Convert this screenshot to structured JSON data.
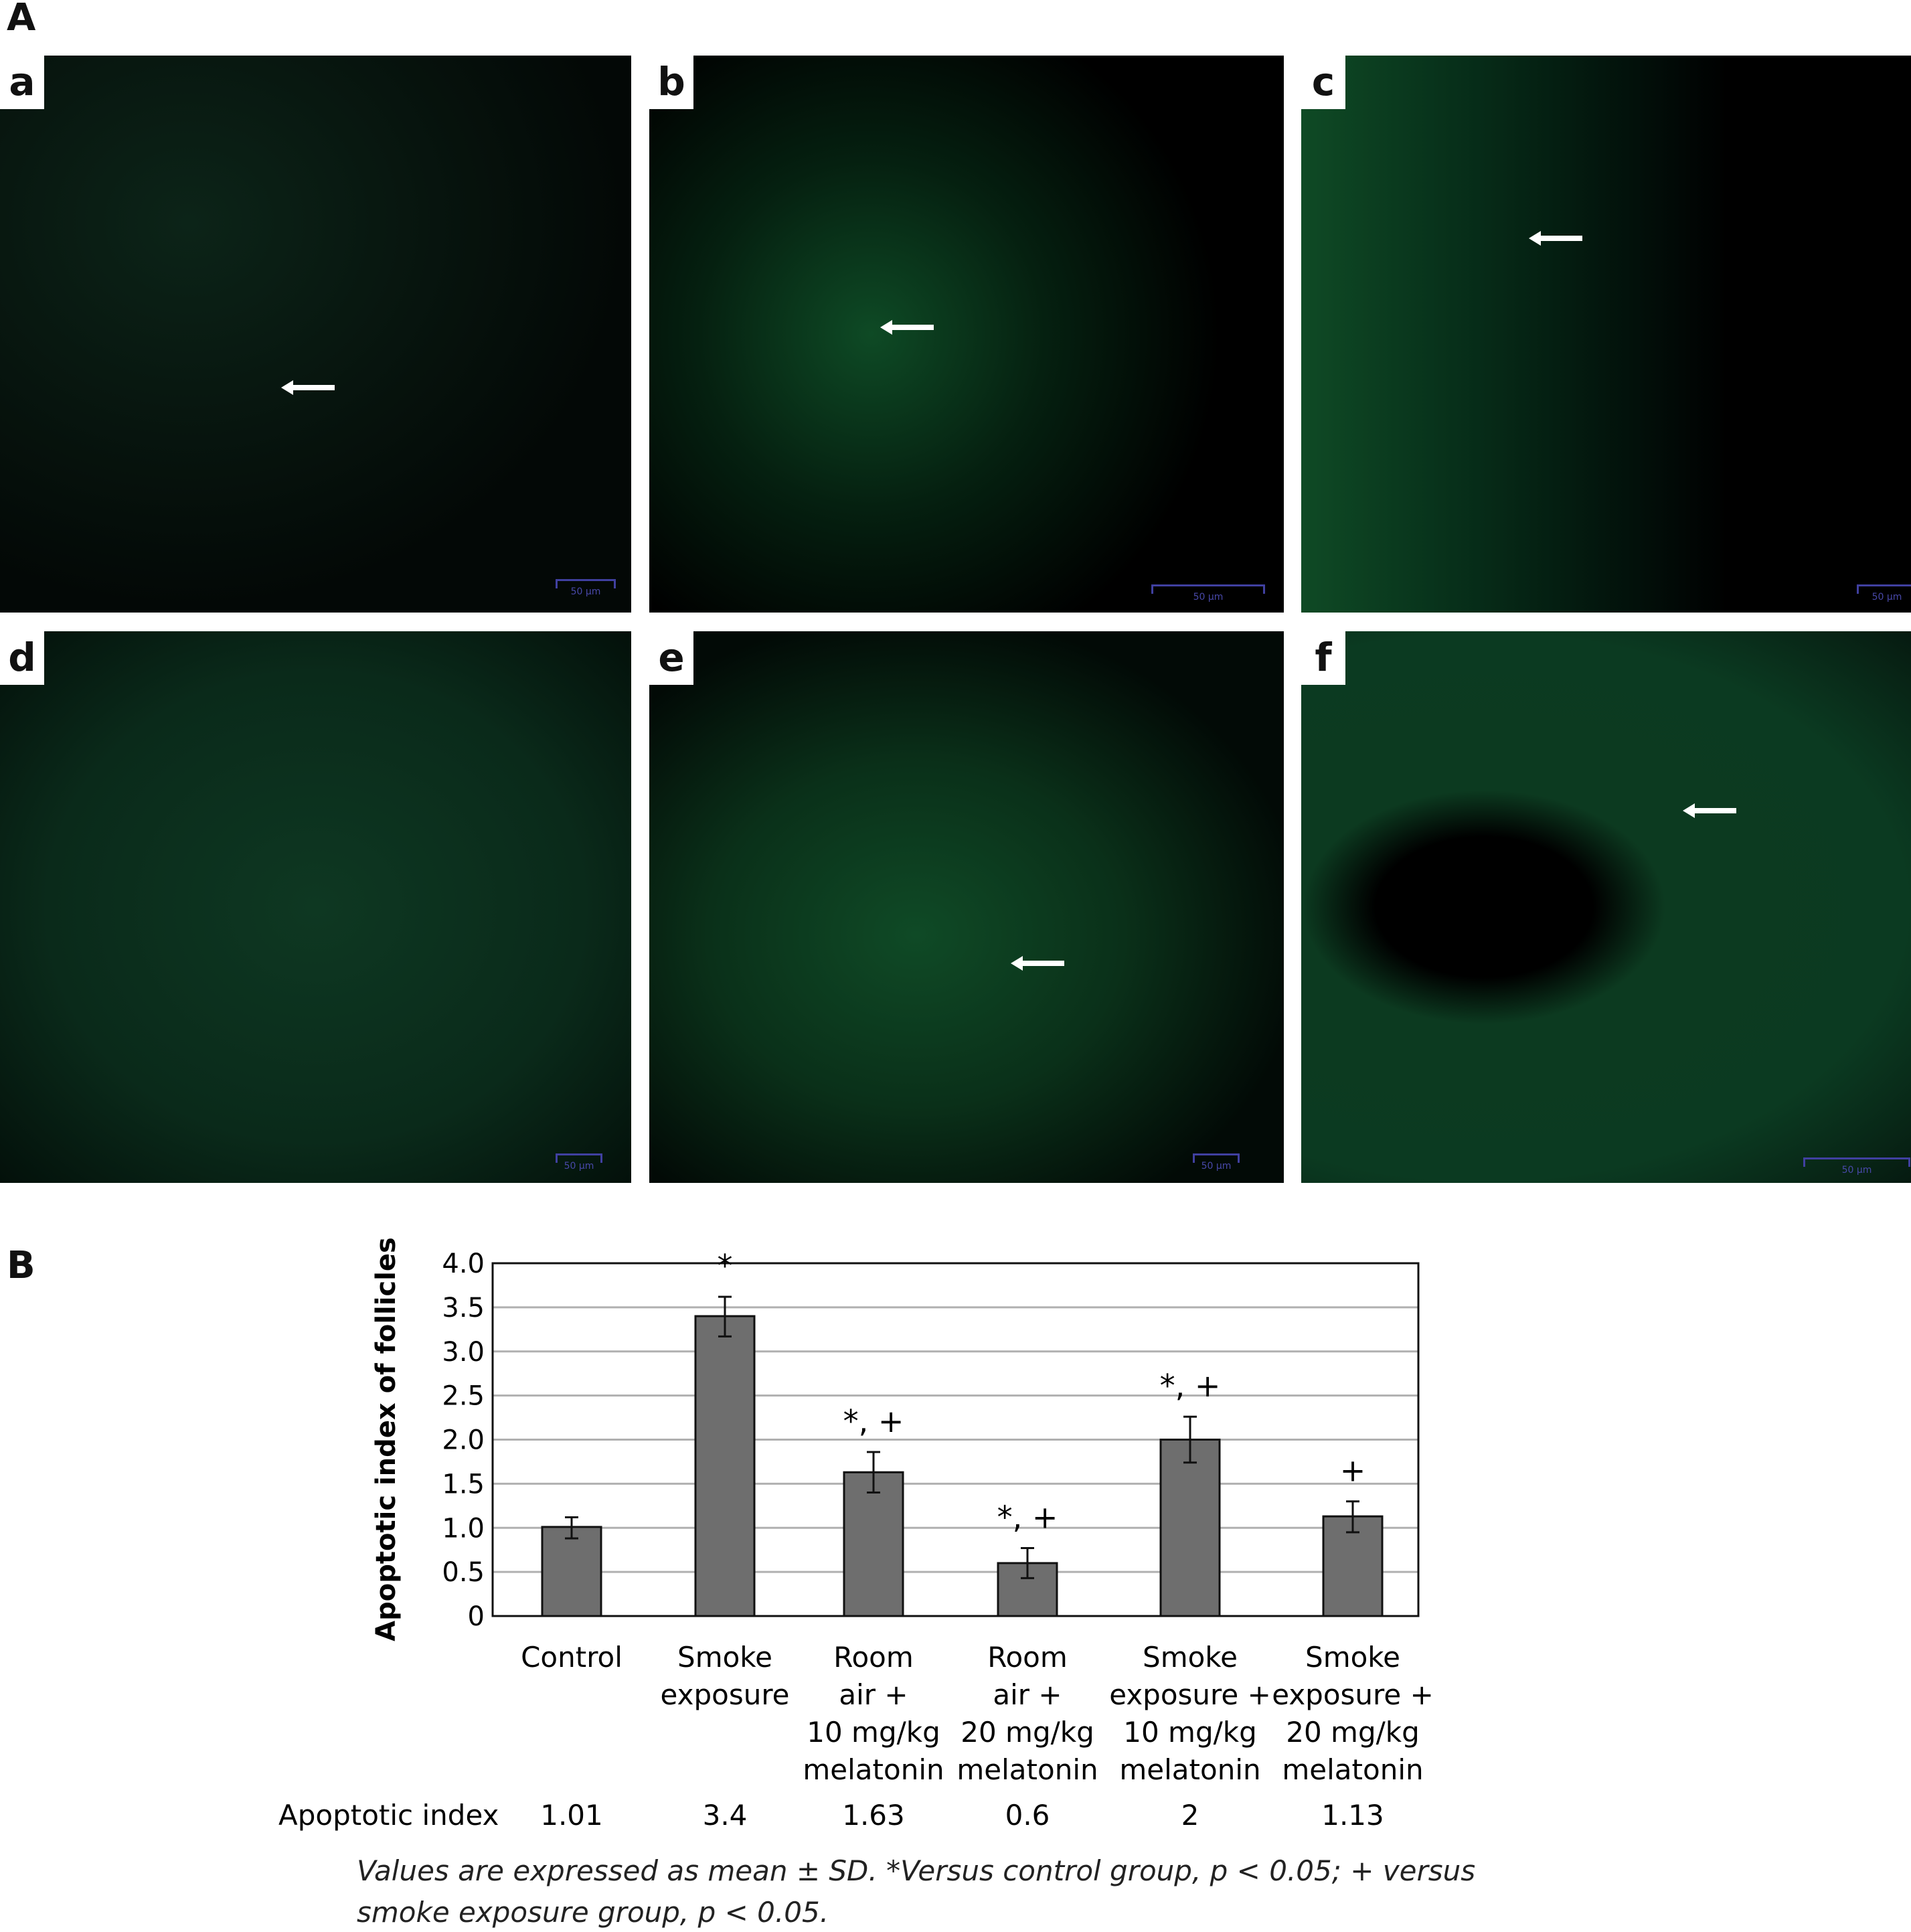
{
  "figure": {
    "part_a_label": "A",
    "part_b_label": "B",
    "panels": [
      {
        "label": "a"
      },
      {
        "label": "b"
      },
      {
        "label": "c"
      },
      {
        "label": "d"
      },
      {
        "label": "e"
      },
      {
        "label": "f"
      }
    ],
    "scale_bar": "50 µm",
    "footnote_line1": "Values are expressed as mean ± SD. *Versus control group, p < 0.05; + versus",
    "footnote_line2": "smoke exposure group, p < 0.05."
  },
  "chart_data": {
    "type": "bar",
    "title": "",
    "ylabel": "Apoptotic index of follicles",
    "xlabel": "",
    "ylim": [
      0,
      4.0
    ],
    "yticks": [
      "0",
      "0.5",
      "1.0",
      "1.5",
      "2.0",
      "2.5",
      "3.0",
      "3.5",
      "4.0"
    ],
    "grid": true,
    "categories": [
      [
        "Control"
      ],
      [
        "Smoke",
        "exposure"
      ],
      [
        "Room",
        "air +",
        "10 mg/kg",
        "melatonin"
      ],
      [
        "Room",
        "air +",
        "20 mg/kg",
        "melatonin"
      ],
      [
        "Smoke",
        "exposure +",
        "10 mg/kg",
        "melatonin"
      ],
      [
        "Smoke",
        "exposure +",
        "20 mg/kg",
        "melatonin"
      ]
    ],
    "values": [
      1.01,
      3.4,
      1.63,
      0.6,
      2,
      1.13
    ],
    "error_low": [
      0.88,
      3.17,
      1.4,
      0.43,
      1.74,
      0.95
    ],
    "error_high": [
      1.12,
      3.62,
      1.86,
      0.77,
      2.26,
      1.3
    ],
    "annotations": [
      "",
      "*",
      "*, +",
      "*, +",
      "*, +",
      "+"
    ],
    "bar_color": "#6e6e6e",
    "table_label": "Apoptotic index",
    "table_values": [
      "1.01",
      "3.4",
      "1.63",
      "0.6",
      "2",
      "1.13"
    ]
  }
}
